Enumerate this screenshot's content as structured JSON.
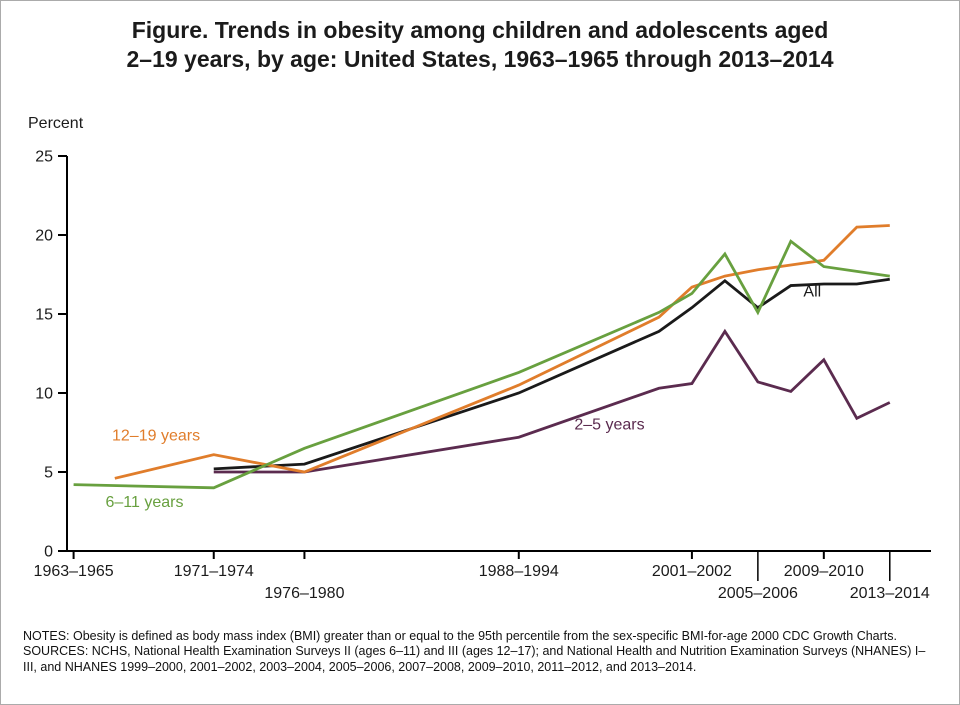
{
  "title": {
    "line1": "Figure. Trends in obesity among children and adolescents aged",
    "line2": "2–19 years, by age: United States, 1963–1965 through 2013–2014"
  },
  "notes": {
    "notes": "NOTES: Obesity is defined as body mass index (BMI) greater than or equal to the 95th percentile from the sex-specific BMI-for-age 2000 CDC Growth Charts.",
    "sources": "SOURCES: NCHS, National Health Examination Surveys II (ages 6–11) and III (ages 12–17); and National Health and Nutrition Examination Surveys (NHANES) I–III, and NHANES 1999–2000, 2001–2002, 2003–2004, 2005–2006, 2007–2008, 2009–2010, 2011–2012, and 2013–2014.",
    "_": ""
  },
  "chart_data": {
    "type": "line",
    "title": "Figure. Trends in obesity among children and adolescents aged 2–19 years, by age: United States, 1963–1965 through 2013–2014",
    "ylabel": "Percent",
    "xlabel": "",
    "ylim": [
      0,
      25
    ],
    "yticks": [
      0,
      5,
      10,
      15,
      20,
      25
    ],
    "grid": false,
    "legend": "inline labels on lines",
    "x_domain_years": [
      1963.6,
      2016.0
    ],
    "x_axis_ticks": [
      {
        "label": "1963–1965",
        "year": 1964,
        "row": 1,
        "leader": false
      },
      {
        "label": "1971–1974",
        "year": 1972.5,
        "row": 1,
        "leader": false
      },
      {
        "label": "1976–1980",
        "year": 1978,
        "row": 2,
        "leader": false
      },
      {
        "label": "1988–1994",
        "year": 1991,
        "row": 1,
        "leader": false
      },
      {
        "label": "2001–2002",
        "year": 2001.5,
        "row": 1,
        "leader": false
      },
      {
        "label": "2005–2006",
        "year": 2005.5,
        "row": 2,
        "leader": true
      },
      {
        "label": "2009–2010",
        "year": 2009.5,
        "row": 1,
        "leader": false
      },
      {
        "label": "2013–2014",
        "year": 2013.5,
        "row": 2,
        "leader": true
      }
    ],
    "series": [
      {
        "name": "2–5 years",
        "color": "#5b2b4f",
        "periods": [
          "1971–1974",
          "1976–1980",
          "1988–1994",
          "1999–2000",
          "2001–2002",
          "2003–2004",
          "2005–2006",
          "2007–2008",
          "2009–2010",
          "2011–2012",
          "2013–2014"
        ],
        "years": [
          1972.5,
          1978,
          1991,
          1999.5,
          2001.5,
          2003.5,
          2005.5,
          2007.5,
          2009.5,
          2011.5,
          2013.5
        ],
        "values": [
          5.0,
          5.0,
          7.2,
          10.3,
          10.6,
          13.9,
          10.7,
          10.1,
          12.1,
          8.4,
          9.4
        ]
      },
      {
        "name": "All",
        "color": "#1a1a1a",
        "periods": [
          "1971–1974",
          "1976–1980",
          "1988–1994",
          "1999–2000",
          "2001–2002",
          "2003–2004",
          "2005–2006",
          "2007–2008",
          "2009–2010",
          "2011–2012",
          "2013–2014"
        ],
        "years": [
          1972.5,
          1978,
          1991,
          1999.5,
          2001.5,
          2003.5,
          2005.5,
          2007.5,
          2009.5,
          2011.5,
          2013.5
        ],
        "values": [
          5.2,
          5.5,
          10.0,
          13.9,
          15.4,
          17.1,
          15.4,
          16.8,
          16.9,
          16.9,
          17.2
        ]
      },
      {
        "name": "12–19 years",
        "color": "#e07d2b",
        "periods": [
          "1966–1970",
          "1971–1974",
          "1976–1980",
          "1988–1994",
          "1999–2000",
          "2001–2002",
          "2003–2004",
          "2005–2006",
          "2007–2008",
          "2009–2010",
          "2011–2012",
          "2013–2014"
        ],
        "years": [
          1966.5,
          1972.5,
          1978,
          1991,
          1999.5,
          2001.5,
          2003.5,
          2005.5,
          2007.5,
          2009.5,
          2011.5,
          2013.5
        ],
        "values": [
          4.6,
          6.1,
          5.0,
          10.5,
          14.8,
          16.7,
          17.4,
          17.8,
          18.1,
          18.4,
          20.5,
          20.6
        ]
      },
      {
        "name": "6–11 years",
        "color": "#68a03f",
        "periods": [
          "1963–1965",
          "1971–1974",
          "1976–1980",
          "1988–1994",
          "1999–2000",
          "2001–2002",
          "2003–2004",
          "2005–2006",
          "2007–2008",
          "2009–2010",
          "2011–2012",
          "2013–2014"
        ],
        "years": [
          1964,
          1972.5,
          1978,
          1991,
          1999.5,
          2001.5,
          2003.5,
          2005.5,
          2007.5,
          2009.5,
          2011.5,
          2013.5
        ],
        "values": [
          4.2,
          4.0,
          6.5,
          11.3,
          15.1,
          16.3,
          18.8,
          15.1,
          19.6,
          18.0,
          17.7,
          17.4
        ]
      }
    ],
    "series_labels": [
      {
        "text": "12–19 years",
        "color": "#e07d2b",
        "year": 1969.0,
        "value": 7.0
      },
      {
        "text": "6–11 years",
        "color": "#68a03f",
        "year": 1968.3,
        "value": 2.8
      },
      {
        "text": "2–5 years",
        "color": "#5b2b4f",
        "year": 1996.5,
        "value": 7.7
      },
      {
        "text": "All",
        "color": "#1a1a1a",
        "year": 2008.8,
        "value": 16.1
      }
    ]
  }
}
